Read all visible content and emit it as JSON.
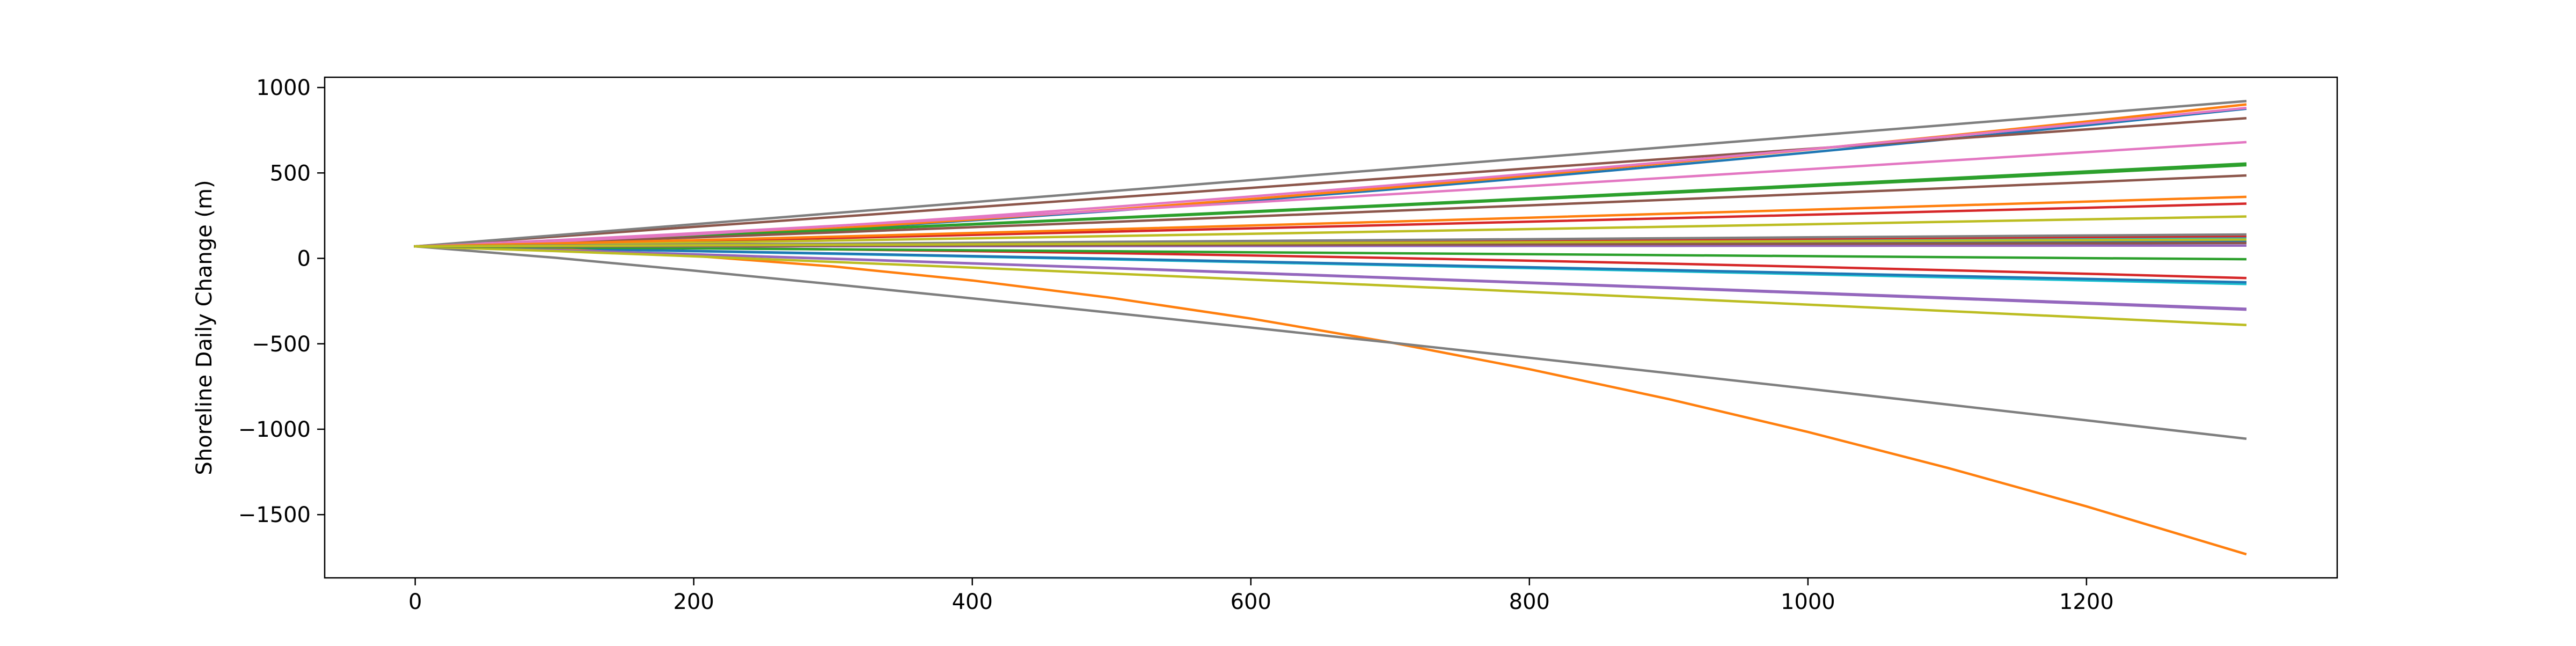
{
  "chart_data": {
    "type": "line",
    "title": "",
    "xlabel": "",
    "ylabel": "Shoreline Daily Change (m)",
    "xlim": [
      -65,
      1380
    ],
    "ylim": [
      -1870,
      1060
    ],
    "xticks": [
      0,
      200,
      400,
      600,
      800,
      1000,
      1200
    ],
    "xtick_labels": [
      "0",
      "200",
      "400",
      "600",
      "800",
      "1000",
      "1200"
    ],
    "yticks": [
      1000,
      500,
      0,
      -500,
      -1000,
      -1500
    ],
    "ytick_labels": [
      "1000",
      "500",
      "0",
      "−500",
      "−1000",
      "−1500"
    ],
    "grid": false,
    "legend": "none",
    "x": [
      0,
      100,
      200,
      300,
      400,
      500,
      600,
      700,
      800,
      900,
      1000,
      1100,
      1200,
      1314
    ],
    "start_value": 70,
    "series": [
      {
        "color": "#1f77b4",
        "end": 875,
        "curve": 1.4
      },
      {
        "color": "#ff7f0e",
        "end": 900,
        "curve": 1.4
      },
      {
        "color": "#2ca02c",
        "end": 545,
        "curve": 1.1
      },
      {
        "color": "#d62728",
        "end": 320,
        "curve": 1.1
      },
      {
        "color": "#9467bd",
        "end": -300,
        "curve": 1.1
      },
      {
        "color": "#8c564b",
        "end": 820,
        "curve": 1.0
      },
      {
        "color": "#e377c2",
        "end": 680,
        "curve": 1.1
      },
      {
        "color": "#7f7f7f",
        "end": 920,
        "curve": 1.0
      },
      {
        "color": "#bcbd22",
        "end": 245,
        "curve": 1.1
      },
      {
        "color": "#17becf",
        "end": -150,
        "curve": 1.1
      },
      {
        "color": "#1f77b4",
        "end": -140,
        "curve": 1.1
      },
      {
        "color": "#ff7f0e",
        "end": -1730,
        "curve": 1.85
      },
      {
        "color": "#2ca02c",
        "end": 555,
        "curve": 1.1
      },
      {
        "color": "#d62728",
        "end": -115,
        "curve": 1.6
      },
      {
        "color": "#9467bd",
        "end": -295,
        "curve": 1.1
      },
      {
        "color": "#8c564b",
        "end": 485,
        "curve": 1.1
      },
      {
        "color": "#e377c2",
        "end": 880,
        "curve": 1.3
      },
      {
        "color": "#7f7f7f",
        "end": -1055,
        "curve": 1.1
      },
      {
        "color": "#bcbd22",
        "end": -390,
        "curve": 1.1
      },
      {
        "color": "#17becf",
        "end": 120,
        "curve": 1.0
      },
      {
        "color": "#1f77b4",
        "end": 100,
        "curve": 1.0
      },
      {
        "color": "#ff7f0e",
        "end": 360,
        "curve": 1.1
      },
      {
        "color": "#2ca02c",
        "end": -5,
        "curve": 1.0
      },
      {
        "color": "#d62728",
        "end": 130,
        "curve": 1.0
      },
      {
        "color": "#9467bd",
        "end": 75,
        "curve": 1.0
      },
      {
        "color": "#8c564b",
        "end": 90,
        "curve": 1.0
      },
      {
        "color": "#7f7f7f",
        "end": 140,
        "curve": 1.0
      },
      {
        "color": "#bcbd22",
        "end": 110,
        "curve": 1.0
      }
    ]
  }
}
